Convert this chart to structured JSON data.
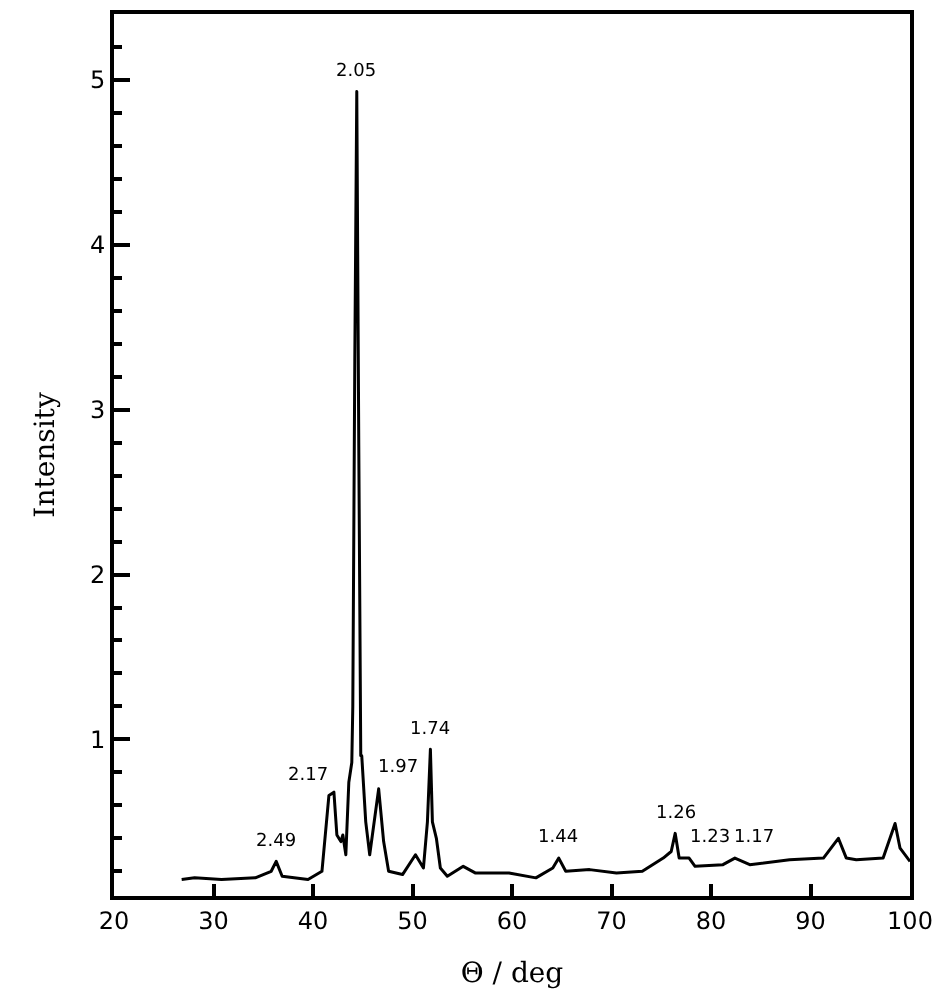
{
  "chart_data": {
    "type": "line",
    "xlabel": "Θ / deg",
    "ylabel": "Intensity",
    "x": [
      26.8,
      28.1,
      30.8,
      34.2,
      35.8,
      36.3,
      36.9,
      39.5,
      40.9,
      41.6,
      42.1,
      42.4,
      42.8,
      43.0,
      43.3,
      43.6,
      43.9,
      44.0,
      44.2,
      44.4,
      44.6,
      44.8,
      44.9,
      45.3,
      45.7,
      46.6,
      47.1,
      47.6,
      49.0,
      50.3,
      51.1,
      51.5,
      51.8,
      52.0,
      52.4,
      52.8,
      53.5,
      55.1,
      56.3,
      59.7,
      62.4,
      64.1,
      64.7,
      65.4,
      67.8,
      70.5,
      73.1,
      75.2,
      76.0,
      76.4,
      76.8,
      77.8,
      78.4,
      81.2,
      82.4,
      83.9,
      87.9,
      91.3,
      92.8,
      93.6,
      94.6,
      97.3,
      98.5,
      99.0,
      100.0
    ],
    "series": [
      {
        "color": "#000000",
        "values": [
          0.15,
          0.16,
          0.15,
          0.16,
          0.2,
          0.26,
          0.17,
          0.15,
          0.2,
          0.66,
          0.68,
          0.42,
          0.38,
          0.42,
          0.3,
          0.74,
          0.86,
          1.2,
          3.3,
          4.93,
          2.78,
          0.9,
          0.9,
          0.5,
          0.3,
          0.7,
          0.38,
          0.2,
          0.18,
          0.3,
          0.22,
          0.5,
          0.94,
          0.5,
          0.4,
          0.22,
          0.17,
          0.23,
          0.19,
          0.19,
          0.16,
          0.22,
          0.28,
          0.2,
          0.21,
          0.19,
          0.2,
          0.28,
          0.32,
          0.43,
          0.28,
          0.28,
          0.23,
          0.24,
          0.28,
          0.24,
          0.27,
          0.28,
          0.4,
          0.28,
          0.27,
          0.28,
          0.49,
          0.34,
          0.26
        ]
      }
    ],
    "xlim": [
      20,
      100
    ],
    "xticks": [
      20,
      30,
      40,
      50,
      60,
      70,
      80,
      90,
      100
    ],
    "ylim": [
      0.05,
      5.4
    ],
    "yticks": [
      1,
      2,
      3,
      4,
      5
    ],
    "annotations": [
      {
        "text": "2.49",
        "x": 36.3,
        "y": 0.26
      },
      {
        "text": "2.17",
        "x": 41.6,
        "y": 0.66
      },
      {
        "text": "2.05",
        "x": 44.4,
        "y": 4.93
      },
      {
        "text": "1.97",
        "x": 46.6,
        "y": 0.7
      },
      {
        "text": "1.74",
        "x": 51.8,
        "y": 0.94
      },
      {
        "text": "1.44",
        "x": 64.7,
        "y": 0.28
      },
      {
        "text": "1.26",
        "x": 76.4,
        "y": 0.43
      },
      {
        "text": "1.23",
        "x": 77.8,
        "y": 0.28
      },
      {
        "text": "1.17",
        "x": 82.4,
        "y": 0.28
      }
    ]
  }
}
